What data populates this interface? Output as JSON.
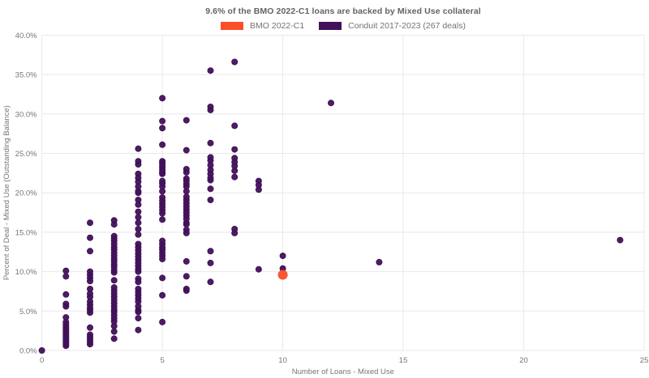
{
  "chart_data": {
    "type": "scatter",
    "title": "9.6% of the BMO 2022-C1 loans are backed by Mixed Use collateral",
    "xlabel": "Number of Loans - Mixed Use",
    "ylabel": "Percent of Deal - Mixed Use (Outstanding Balance)",
    "xlim": [
      0,
      25
    ],
    "ylim_pct": [
      0,
      40
    ],
    "x_ticks": [
      0,
      5,
      10,
      15,
      20,
      25
    ],
    "y_ticks": [
      "0.0%",
      "5.0%",
      "10.0%",
      "15.0%",
      "20.0%",
      "25.0%",
      "30.0%",
      "35.0%",
      "40.0%"
    ],
    "grid": true,
    "legend_position": "top-center",
    "colors": {
      "bmo_accent": "#fa4f28",
      "conduit_purple": "#42115a",
      "gridline": "#e8e8e8",
      "tick_text": "#757575",
      "title_text": "#636363"
    },
    "series": [
      {
        "name": "BMO 2022-C1",
        "color": "#fa4f28",
        "marker_size": 11,
        "points": [
          [
            10,
            9.6
          ]
        ]
      },
      {
        "name": "Conduit 2017-2023 (267 deals)",
        "color": "#42115a",
        "marker_size": 7,
        "points": [
          [
            0,
            0.0
          ],
          [
            1,
            10.1
          ],
          [
            1,
            9.4
          ],
          [
            1,
            7.1
          ],
          [
            1,
            5.9
          ],
          [
            1,
            5.6
          ],
          [
            1,
            4.2
          ],
          [
            1,
            3.6
          ],
          [
            1,
            3.3
          ],
          [
            1,
            3.0
          ],
          [
            1,
            2.8
          ],
          [
            1,
            2.6
          ],
          [
            1,
            2.4
          ],
          [
            1,
            2.2
          ],
          [
            1,
            2.0
          ],
          [
            1,
            1.8
          ],
          [
            1,
            1.6
          ],
          [
            1,
            1.4
          ],
          [
            1,
            1.2
          ],
          [
            1,
            1.0
          ],
          [
            1,
            0.8
          ],
          [
            1,
            0.6
          ],
          [
            2,
            16.2
          ],
          [
            2,
            14.3
          ],
          [
            2,
            12.6
          ],
          [
            2,
            10.0
          ],
          [
            2,
            9.6
          ],
          [
            2,
            9.2
          ],
          [
            2,
            8.8
          ],
          [
            2,
            7.8
          ],
          [
            2,
            7.2
          ],
          [
            2,
            6.8
          ],
          [
            2,
            6.2
          ],
          [
            2,
            5.8
          ],
          [
            2,
            5.4
          ],
          [
            2,
            5.1
          ],
          [
            2,
            4.8
          ],
          [
            2,
            2.9
          ],
          [
            2,
            2.0
          ],
          [
            2,
            1.7
          ],
          [
            2,
            1.4
          ],
          [
            2,
            1.1
          ],
          [
            2,
            0.8
          ],
          [
            3,
            16.5
          ],
          [
            3,
            16.0
          ],
          [
            3,
            14.5
          ],
          [
            3,
            14.2
          ],
          [
            3,
            13.9
          ],
          [
            3,
            13.5
          ],
          [
            3,
            13.1
          ],
          [
            3,
            12.8
          ],
          [
            3,
            12.4
          ],
          [
            3,
            12.0
          ],
          [
            3,
            11.6
          ],
          [
            3,
            11.3
          ],
          [
            3,
            10.9
          ],
          [
            3,
            10.6
          ],
          [
            3,
            10.2
          ],
          [
            3,
            9.9
          ],
          [
            3,
            8.9
          ],
          [
            3,
            8.0
          ],
          [
            3,
            7.6
          ],
          [
            3,
            7.2
          ],
          [
            3,
            6.8
          ],
          [
            3,
            6.4
          ],
          [
            3,
            6.0
          ],
          [
            3,
            5.6
          ],
          [
            3,
            5.2
          ],
          [
            3,
            4.9
          ],
          [
            3,
            4.5
          ],
          [
            3,
            4.1
          ],
          [
            3,
            3.7
          ],
          [
            3,
            3.1
          ],
          [
            3,
            2.4
          ],
          [
            3,
            1.5
          ],
          [
            4,
            25.6
          ],
          [
            4,
            24.0
          ],
          [
            4,
            23.6
          ],
          [
            4,
            22.4
          ],
          [
            4,
            21.9
          ],
          [
            4,
            21.4
          ],
          [
            4,
            20.8
          ],
          [
            4,
            20.2
          ],
          [
            4,
            20.0
          ],
          [
            4,
            19.1
          ],
          [
            4,
            18.5
          ],
          [
            4,
            17.6
          ],
          [
            4,
            16.9
          ],
          [
            4,
            16.2
          ],
          [
            4,
            15.4
          ],
          [
            4,
            14.7
          ],
          [
            4,
            13.5
          ],
          [
            4,
            13.1
          ],
          [
            4,
            12.7
          ],
          [
            4,
            12.3
          ],
          [
            4,
            11.9
          ],
          [
            4,
            11.5
          ],
          [
            4,
            11.1
          ],
          [
            4,
            10.7
          ],
          [
            4,
            10.3
          ],
          [
            4,
            10.0
          ],
          [
            4,
            9.1
          ],
          [
            4,
            8.7
          ],
          [
            4,
            7.8
          ],
          [
            4,
            7.4
          ],
          [
            4,
            7.0
          ],
          [
            4,
            6.6
          ],
          [
            4,
            6.2
          ],
          [
            4,
            5.6
          ],
          [
            4,
            5.1
          ],
          [
            4,
            4.9
          ],
          [
            4,
            4.1
          ],
          [
            4,
            2.6
          ],
          [
            5,
            32.0
          ],
          [
            5,
            29.1
          ],
          [
            5,
            28.2
          ],
          [
            5,
            26.1
          ],
          [
            5,
            24.0
          ],
          [
            5,
            23.8
          ],
          [
            5,
            23.5
          ],
          [
            5,
            23.2
          ],
          [
            5,
            22.9
          ],
          [
            5,
            22.6
          ],
          [
            5,
            22.4
          ],
          [
            5,
            21.5
          ],
          [
            5,
            21.2
          ],
          [
            5,
            20.8
          ],
          [
            5,
            20.2
          ],
          [
            5,
            19.4
          ],
          [
            5,
            19.0
          ],
          [
            5,
            18.6
          ],
          [
            5,
            18.2
          ],
          [
            5,
            17.8
          ],
          [
            5,
            17.4
          ],
          [
            5,
            16.6
          ],
          [
            5,
            13.9
          ],
          [
            5,
            13.5
          ],
          [
            5,
            13.1
          ],
          [
            5,
            12.8
          ],
          [
            5,
            12.4
          ],
          [
            5,
            12.0
          ],
          [
            5,
            11.6
          ],
          [
            5,
            9.2
          ],
          [
            5,
            7.0
          ],
          [
            5,
            3.6
          ],
          [
            6,
            29.2
          ],
          [
            6,
            25.4
          ],
          [
            6,
            23.0
          ],
          [
            6,
            22.6
          ],
          [
            6,
            21.8
          ],
          [
            6,
            21.5
          ],
          [
            6,
            21.1
          ],
          [
            6,
            20.8
          ],
          [
            6,
            20.2
          ],
          [
            6,
            19.5
          ],
          [
            6,
            19.1
          ],
          [
            6,
            18.7
          ],
          [
            6,
            18.3
          ],
          [
            6,
            17.9
          ],
          [
            6,
            17.5
          ],
          [
            6,
            17.1
          ],
          [
            6,
            16.7
          ],
          [
            6,
            16.2
          ],
          [
            6,
            16.0
          ],
          [
            6,
            15.3
          ],
          [
            6,
            14.9
          ],
          [
            6,
            11.3
          ],
          [
            6,
            9.4
          ],
          [
            6,
            7.8
          ],
          [
            6,
            7.6
          ],
          [
            7,
            35.5
          ],
          [
            7,
            30.9
          ],
          [
            7,
            30.5
          ],
          [
            7,
            26.3
          ],
          [
            7,
            24.5
          ],
          [
            7,
            24.1
          ],
          [
            7,
            23.5
          ],
          [
            7,
            22.9
          ],
          [
            7,
            22.4
          ],
          [
            7,
            21.9
          ],
          [
            7,
            21.6
          ],
          [
            7,
            20.5
          ],
          [
            7,
            19.1
          ],
          [
            7,
            12.6
          ],
          [
            7,
            11.1
          ],
          [
            7,
            8.7
          ],
          [
            8,
            36.6
          ],
          [
            8,
            28.5
          ],
          [
            8,
            25.5
          ],
          [
            8,
            24.4
          ],
          [
            8,
            23.9
          ],
          [
            8,
            23.4
          ],
          [
            8,
            22.8
          ],
          [
            8,
            22.0
          ],
          [
            8,
            15.4
          ],
          [
            8,
            14.9
          ],
          [
            9,
            21.5
          ],
          [
            9,
            21.0
          ],
          [
            9,
            20.4
          ],
          [
            9,
            10.3
          ],
          [
            10,
            12.0
          ],
          [
            10,
            10.4
          ],
          [
            12,
            31.4
          ],
          [
            14,
            11.2
          ],
          [
            24,
            14.0
          ]
        ]
      }
    ]
  }
}
